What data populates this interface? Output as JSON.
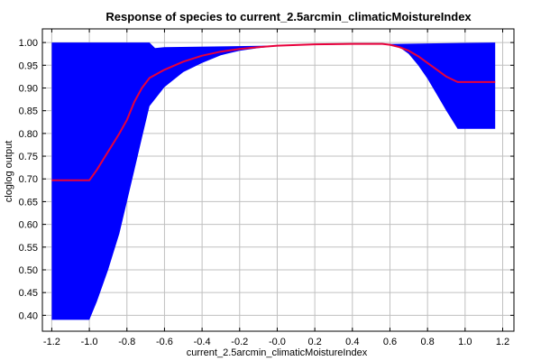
{
  "chart_data": {
    "type": "area",
    "title": "Response of species to current_2.5arcmin_climaticMoistureIndex",
    "xlabel": "current_2.5arcmin_climaticMoistureIndex",
    "ylabel": "cloglog output",
    "xlim": [
      -1.25,
      1.26
    ],
    "ylim": [
      0.365,
      1.03
    ],
    "grid": true,
    "xticks": [
      -1.2,
      -1.0,
      -0.8,
      -0.6,
      -0.4,
      -0.2,
      0.0,
      0.2,
      0.4,
      0.6,
      0.8,
      1.0,
      1.2
    ],
    "xtick_labels": [
      "-1.2",
      "-1.0",
      "-0.8",
      "-0.6",
      "-0.4",
      "-0.2",
      "-0.0",
      "0.2",
      "0.4",
      "0.6",
      "0.8",
      "1.0",
      "1.2"
    ],
    "yticks": [
      0.4,
      0.45,
      0.5,
      0.55,
      0.6,
      0.65,
      0.7,
      0.75,
      0.8,
      0.85,
      0.9,
      0.95,
      1.0
    ],
    "ytick_labels": [
      "0.40",
      "0.45",
      "0.50",
      "0.55",
      "0.60",
      "0.65",
      "0.70",
      "0.75",
      "0.80",
      "0.85",
      "0.90",
      "0.95",
      "1.00"
    ],
    "colors": {
      "band": "#0000ff",
      "mean": "#e8003c",
      "grid": "#c0c0c0"
    },
    "band_upper": {
      "x": [
        -1.2,
        -0.68,
        -0.65,
        -0.6,
        1.16
      ],
      "y": [
        1.0,
        1.0,
        0.988,
        0.99,
        1.0
      ]
    },
    "band_lower": {
      "x": [
        -1.2,
        -1.0,
        -0.96,
        -0.9,
        -0.84,
        -0.8,
        -0.76,
        -0.72,
        -0.68,
        -0.6,
        -0.5,
        -0.4,
        -0.3,
        -0.2,
        -0.1,
        0.0,
        0.2,
        0.4,
        0.56,
        0.6,
        0.65,
        0.7,
        0.75,
        0.8,
        0.85,
        0.9,
        0.96,
        1.16
      ],
      "y": [
        0.39,
        0.39,
        0.43,
        0.5,
        0.58,
        0.65,
        0.72,
        0.79,
        0.86,
        0.902,
        0.935,
        0.955,
        0.972,
        0.982,
        0.988,
        0.992,
        0.996,
        0.997,
        0.997,
        0.996,
        0.99,
        0.975,
        0.95,
        0.92,
        0.885,
        0.85,
        0.81,
        0.81
      ]
    },
    "series": [
      {
        "x": [
          -1.2,
          -1.0,
          -0.96,
          -0.9,
          -0.84,
          -0.8,
          -0.76,
          -0.72,
          -0.68,
          -0.6,
          -0.5,
          -0.4,
          -0.3,
          -0.2,
          -0.1,
          0.0,
          0.2,
          0.4,
          0.56,
          0.6,
          0.65,
          0.7,
          0.75,
          0.8,
          0.85,
          0.9,
          0.96,
          1.16
        ],
        "values": [
          0.697,
          0.697,
          0.72,
          0.76,
          0.8,
          0.83,
          0.87,
          0.9,
          0.922,
          0.94,
          0.958,
          0.971,
          0.98,
          0.986,
          0.99,
          0.993,
          0.996,
          0.997,
          0.997,
          0.995,
          0.99,
          0.982,
          0.97,
          0.955,
          0.94,
          0.925,
          0.913,
          0.913
        ]
      }
    ]
  }
}
